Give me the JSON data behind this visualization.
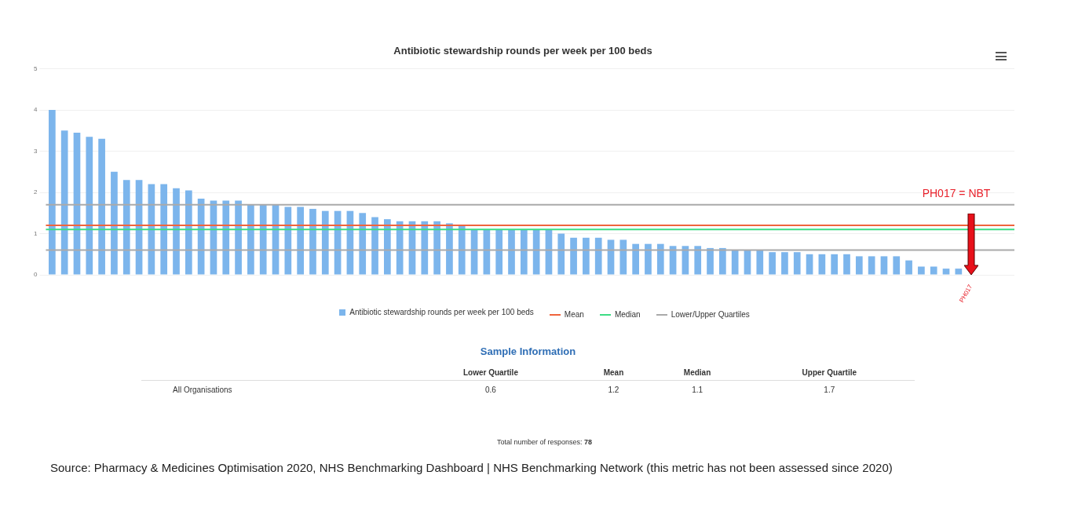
{
  "chart_data": {
    "type": "bar",
    "title": "Antibiotic stewardship rounds per week per 100 beds",
    "categories": [
      null,
      null,
      null,
      null,
      null,
      null,
      null,
      null,
      null,
      null,
      null,
      null,
      null,
      null,
      null,
      null,
      null,
      null,
      null,
      null,
      null,
      null,
      null,
      null,
      null,
      null,
      null,
      null,
      null,
      null,
      null,
      null,
      null,
      null,
      null,
      null,
      null,
      null,
      null,
      null,
      null,
      null,
      null,
      null,
      null,
      null,
      null,
      null,
      null,
      null,
      null,
      null,
      null,
      null,
      null,
      null,
      null,
      null,
      null,
      null,
      null,
      null,
      null,
      null,
      null,
      null,
      null,
      null,
      null,
      null,
      null,
      null,
      null,
      null,
      "PH017",
      null,
      null,
      null
    ],
    "series": [
      {
        "name": "Antibiotic stewardship rounds per week per 100 beds",
        "color": "#7cb5ec",
        "values": [
          4.0,
          3.5,
          3.45,
          3.35,
          3.3,
          2.5,
          2.3,
          2.3,
          2.2,
          2.2,
          2.1,
          2.05,
          1.85,
          1.8,
          1.8,
          1.8,
          1.7,
          1.7,
          1.7,
          1.65,
          1.65,
          1.6,
          1.55,
          1.55,
          1.55,
          1.5,
          1.4,
          1.35,
          1.3,
          1.3,
          1.3,
          1.3,
          1.25,
          1.2,
          1.1,
          1.1,
          1.1,
          1.1,
          1.1,
          1.1,
          1.1,
          1.0,
          0.9,
          0.9,
          0.9,
          0.85,
          0.85,
          0.75,
          0.75,
          0.75,
          0.7,
          0.7,
          0.7,
          0.65,
          0.65,
          0.6,
          0.6,
          0.6,
          0.55,
          0.55,
          0.55,
          0.5,
          0.5,
          0.5,
          0.5,
          0.45,
          0.45,
          0.45,
          0.45,
          0.35,
          0.2,
          0.2,
          0.15,
          0.15,
          null,
          null,
          null,
          null
        ]
      }
    ],
    "ylim": [
      0,
      5
    ],
    "yticks": [
      0,
      1,
      2,
      3,
      4,
      5
    ],
    "grid": "y",
    "legend": "bottom",
    "ref_lines": [
      {
        "axis": "y",
        "value": 1.2,
        "label": "Mean",
        "color": "#f0643c"
      },
      {
        "axis": "y",
        "value": 1.1,
        "label": "Median",
        "color": "#3ddc84"
      },
      {
        "axis": "y",
        "value": 0.6,
        "label": "Lower/Upper Quartiles",
        "color": "#aaaaaa"
      },
      {
        "axis": "y",
        "value": 1.7,
        "color": "#aaaaaa"
      }
    ],
    "annotations": [
      "PH017 = NBT",
      "Sample Information",
      "Lower Quartile",
      "Mean",
      "Median",
      "Upper Quartile",
      "All Organisations",
      "0.6",
      "1.2",
      "1.1",
      "1.7",
      "Total number of responses: 78",
      "Source: Pharmacy & Medicines Optimisation 2020, NHS Benchmarking Dashboard | NHS Benchmarking Network (this metric has not been assessed since 2020)"
    ]
  }
}
